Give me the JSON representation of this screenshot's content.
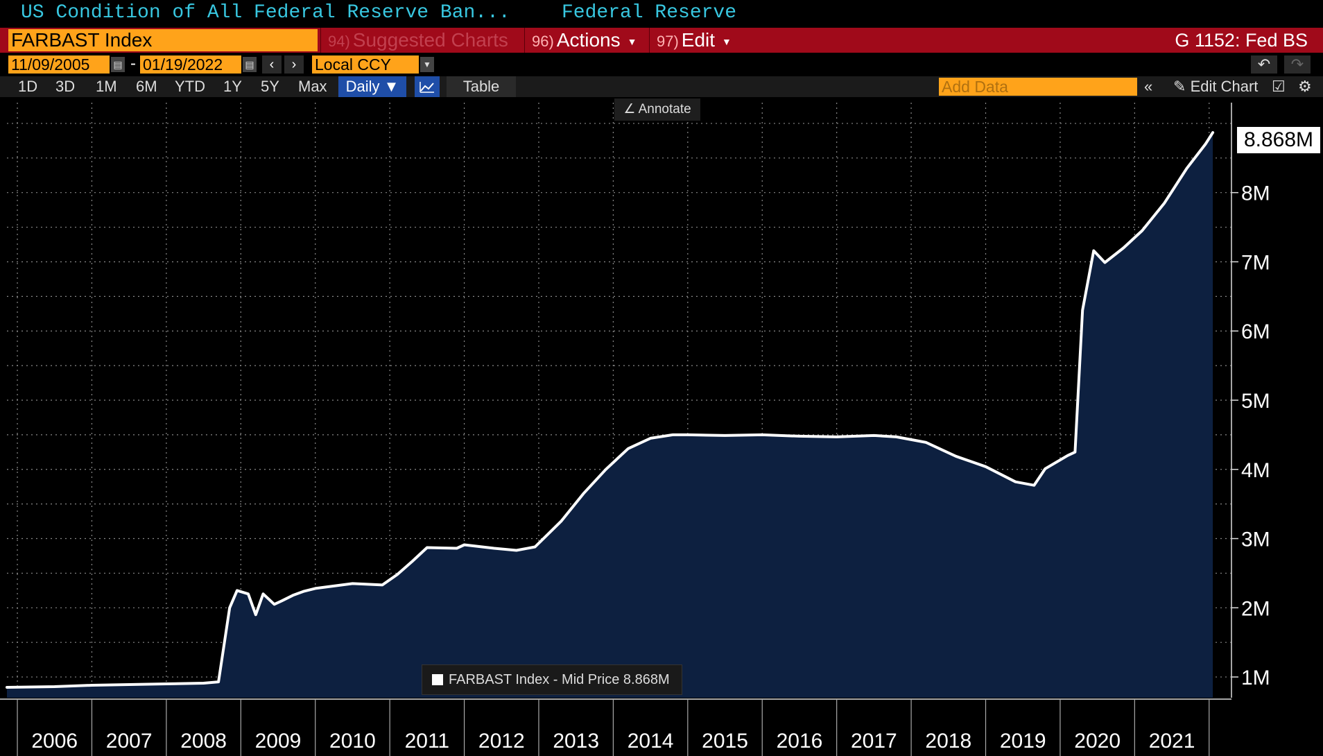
{
  "header": {
    "title": "US Condition of All Federal Reserve Ban...",
    "source": "Federal Reserve"
  },
  "command_bar": {
    "ticker": "FARBAST Index",
    "menu": [
      {
        "num": "94)",
        "label": "Suggested Charts"
      },
      {
        "num": "96)",
        "label": "Actions"
      },
      {
        "num": "97)",
        "label": "Edit"
      }
    ],
    "page_label": "G 1152: Fed BS"
  },
  "date_bar": {
    "start_date": "11/09/2005",
    "end_date": "01/19/2022",
    "separator": "-",
    "currency": "Local CCY"
  },
  "toolbar": {
    "ranges": [
      "1D",
      "3D",
      "1M",
      "6M",
      "YTD",
      "1Y",
      "5Y",
      "Max"
    ],
    "frequency": "Daily ▼",
    "table_label": "Table",
    "add_data_placeholder": "Add Data",
    "edit_chart_label": "Edit Chart"
  },
  "annotate_label": "Annotate",
  "last_value_badge": "8.868M",
  "legend_text": "FARBAST Index - Mid Price 8.868M",
  "colors": {
    "accent_orange": "#ffa31a",
    "command_red": "#a00a1a",
    "title_cyan": "#38c7e0",
    "area_fill": "#0d2040",
    "line": "#ffffff"
  },
  "chart_data": {
    "type": "area",
    "series": [
      {
        "name": "FARBAST Index - Mid Price",
        "x": [
          2005.86,
          2006.5,
          2007.0,
          2007.5,
          2008.0,
          2008.5,
          2008.7,
          2008.85,
          2008.95,
          2009.1,
          2009.2,
          2009.3,
          2009.45,
          2009.55,
          2009.7,
          2009.85,
          2010.0,
          2010.5,
          2010.9,
          2011.1,
          2011.3,
          2011.5,
          2011.9,
          2012.0,
          2012.4,
          2012.7,
          2012.95,
          2013.3,
          2013.6,
          2013.9,
          2014.2,
          2014.5,
          2014.8,
          2015.0,
          2015.5,
          2016.0,
          2016.5,
          2017.0,
          2017.5,
          2017.8,
          2018.2,
          2018.6,
          2019.0,
          2019.4,
          2019.65,
          2019.8,
          2020.1,
          2020.2,
          2020.3,
          2020.45,
          2020.6,
          2020.85,
          2021.1,
          2021.4,
          2021.7,
          2021.95,
          2022.05
        ],
        "values": [
          0.85,
          0.86,
          0.88,
          0.89,
          0.9,
          0.91,
          0.93,
          2.0,
          2.25,
          2.2,
          1.9,
          2.2,
          2.05,
          2.1,
          2.18,
          2.24,
          2.28,
          2.35,
          2.33,
          2.48,
          2.67,
          2.87,
          2.86,
          2.91,
          2.86,
          2.83,
          2.88,
          3.25,
          3.65,
          4.0,
          4.3,
          4.45,
          4.5,
          4.5,
          4.49,
          4.5,
          4.48,
          4.47,
          4.49,
          4.47,
          4.39,
          4.19,
          4.04,
          3.82,
          3.77,
          4.01,
          4.2,
          4.25,
          6.3,
          7.16,
          6.99,
          7.2,
          7.45,
          7.85,
          8.35,
          8.7,
          8.868
        ]
      }
    ],
    "x_tick_labels": [
      "2006",
      "2007",
      "2008",
      "2009",
      "2010",
      "2011",
      "2012",
      "2013",
      "2014",
      "2015",
      "2016",
      "2017",
      "2018",
      "2019",
      "2020",
      "2021"
    ],
    "y_tick_labels": [
      "1M",
      "2M",
      "3M",
      "4M",
      "5M",
      "6M",
      "7M",
      "8M"
    ],
    "y_ticks": [
      1,
      2,
      3,
      4,
      5,
      6,
      7,
      8
    ],
    "ylim": [
      0.7,
      9.3
    ],
    "xlim": [
      2005.86,
      2022.3
    ],
    "grid": true,
    "unit": "M"
  }
}
